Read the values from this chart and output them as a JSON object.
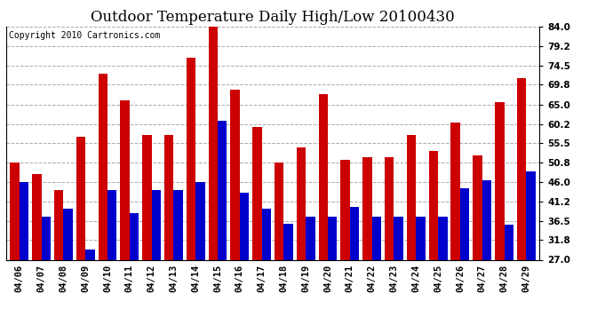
{
  "title": "Outdoor Temperature Daily High/Low 20100430",
  "copyright": "Copyright 2010 Cartronics.com",
  "dates": [
    "04/06",
    "04/07",
    "04/08",
    "04/09",
    "04/10",
    "04/11",
    "04/12",
    "04/13",
    "04/14",
    "04/15",
    "04/16",
    "04/17",
    "04/18",
    "04/19",
    "04/20",
    "04/21",
    "04/22",
    "04/23",
    "04/24",
    "04/25",
    "04/26",
    "04/27",
    "04/28",
    "04/29"
  ],
  "highs": [
    50.8,
    48.0,
    44.0,
    57.0,
    72.5,
    66.0,
    57.5,
    57.5,
    76.5,
    84.0,
    68.5,
    59.5,
    50.8,
    54.5,
    67.5,
    51.5,
    52.0,
    52.0,
    57.5,
    53.5,
    60.5,
    52.5,
    65.5,
    71.5
  ],
  "lows": [
    46.0,
    37.5,
    39.5,
    29.5,
    44.0,
    38.5,
    44.0,
    44.0,
    46.0,
    61.0,
    43.5,
    39.5,
    35.8,
    37.5,
    37.5,
    40.0,
    37.5,
    37.5,
    37.5,
    37.5,
    44.5,
    46.5,
    35.5,
    48.5
  ],
  "high_color": "#cc0000",
  "low_color": "#0000cc",
  "bg_color": "#ffffff",
  "plot_bg_color": "#ffffff",
  "grid_color": "#aaaaaa",
  "ylim": [
    27.0,
    84.0
  ],
  "ybase": 27.0,
  "yticks": [
    27.0,
    31.8,
    36.5,
    41.2,
    46.0,
    50.8,
    55.5,
    60.2,
    65.0,
    69.8,
    74.5,
    79.2,
    84.0
  ],
  "title_fontsize": 12,
  "copyright_fontsize": 7,
  "tick_fontsize": 7.5,
  "bar_width": 0.42
}
